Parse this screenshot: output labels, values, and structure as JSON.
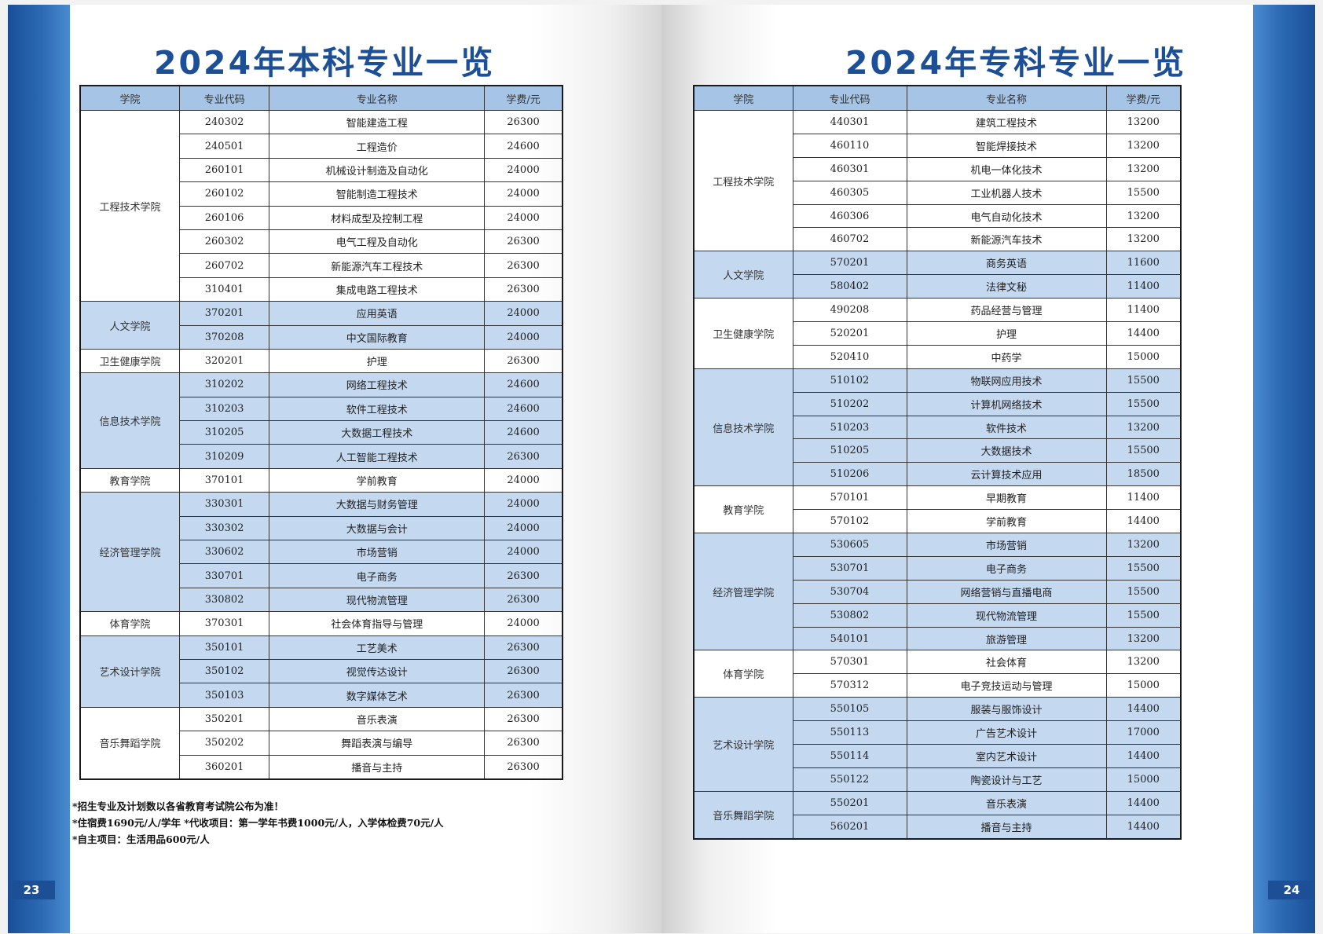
{
  "left_page": {
    "title": "2024年本科专业一览",
    "page_number": "23",
    "headers": [
      "学院",
      "专业代码",
      "专业名称",
      "学费/元"
    ],
    "groups": [
      {
        "college": "工程技术学院",
        "shaded": false,
        "rows": [
          {
            "code": "240302",
            "name": "智能建造工程",
            "fee": "26300"
          },
          {
            "code": "240501",
            "name": "工程造价",
            "fee": "24600"
          },
          {
            "code": "260101",
            "name": "机械设计制造及自动化",
            "fee": "24000"
          },
          {
            "code": "260102",
            "name": "智能制造工程技术",
            "fee": "24000"
          },
          {
            "code": "260106",
            "name": "材料成型及控制工程",
            "fee": "24000"
          },
          {
            "code": "260302",
            "name": "电气工程及自动化",
            "fee": "26300"
          },
          {
            "code": "260702",
            "name": "新能源汽车工程技术",
            "fee": "26300"
          },
          {
            "code": "310401",
            "name": "集成电路工程技术",
            "fee": "26300"
          }
        ]
      },
      {
        "college": "人文学院",
        "shaded": true,
        "rows": [
          {
            "code": "370201",
            "name": "应用英语",
            "fee": "24000"
          },
          {
            "code": "370208",
            "name": "中文国际教育",
            "fee": "24000"
          }
        ]
      },
      {
        "college": "卫生健康学院",
        "shaded": false,
        "rows": [
          {
            "code": "320201",
            "name": "护理",
            "fee": "26300"
          }
        ]
      },
      {
        "college": "信息技术学院",
        "shaded": true,
        "rows": [
          {
            "code": "310202",
            "name": "网络工程技术",
            "fee": "24600"
          },
          {
            "code": "310203",
            "name": "软件工程技术",
            "fee": "24600"
          },
          {
            "code": "310205",
            "name": "大数据工程技术",
            "fee": "24600"
          },
          {
            "code": "310209",
            "name": "人工智能工程技术",
            "fee": "26300"
          }
        ]
      },
      {
        "college": "教育学院",
        "shaded": false,
        "rows": [
          {
            "code": "370101",
            "name": "学前教育",
            "fee": "24000"
          }
        ]
      },
      {
        "college": "经济管理学院",
        "shaded": true,
        "rows": [
          {
            "code": "330301",
            "name": "大数据与财务管理",
            "fee": "24000"
          },
          {
            "code": "330302",
            "name": "大数据与会计",
            "fee": "24000"
          },
          {
            "code": "330602",
            "name": "市场营销",
            "fee": "24000"
          },
          {
            "code": "330701",
            "name": "电子商务",
            "fee": "26300"
          },
          {
            "code": "330802",
            "name": "现代物流管理",
            "fee": "26300"
          }
        ]
      },
      {
        "college": "体育学院",
        "shaded": false,
        "rows": [
          {
            "code": "370301",
            "name": "社会体育指导与管理",
            "fee": "24000"
          }
        ]
      },
      {
        "college": "艺术设计学院",
        "shaded": true,
        "rows": [
          {
            "code": "350101",
            "name": "工艺美术",
            "fee": "26300"
          },
          {
            "code": "350102",
            "name": "视觉传达设计",
            "fee": "26300"
          },
          {
            "code": "350103",
            "name": "数字媒体艺术",
            "fee": "26300"
          }
        ]
      },
      {
        "college": "音乐舞蹈学院",
        "shaded": false,
        "rows": [
          {
            "code": "350201",
            "name": "音乐表演",
            "fee": "26300"
          },
          {
            "code": "350202",
            "name": "舞蹈表演与编导",
            "fee": "26300"
          },
          {
            "code": "360201",
            "name": "播音与主持",
            "fee": "26300"
          }
        ]
      }
    ],
    "notes": [
      "*招生专业及计划数以各省教育考试院公布为准！",
      "*住宿费1690元/人/学年  *代收项目：第一学年书费1000元/人，入学体检费70元/人",
      "*自主项目：生活用品600元/人"
    ]
  },
  "right_page": {
    "title": "2024年专科专业一览",
    "page_number": "24",
    "headers": [
      "学院",
      "专业代码",
      "专业名称",
      "学费/元"
    ],
    "groups": [
      {
        "college": "工程技术学院",
        "shaded": false,
        "rows": [
          {
            "code": "440301",
            "name": "建筑工程技术",
            "fee": "13200"
          },
          {
            "code": "460110",
            "name": "智能焊接技术",
            "fee": "13200"
          },
          {
            "code": "460301",
            "name": "机电一体化技术",
            "fee": "13200"
          },
          {
            "code": "460305",
            "name": "工业机器人技术",
            "fee": "15500"
          },
          {
            "code": "460306",
            "name": "电气自动化技术",
            "fee": "13200"
          },
          {
            "code": "460702",
            "name": "新能源汽车技术",
            "fee": "13200"
          }
        ]
      },
      {
        "college": "人文学院",
        "shaded": true,
        "rows": [
          {
            "code": "570201",
            "name": "商务英语",
            "fee": "11600"
          },
          {
            "code": "580402",
            "name": "法律文秘",
            "fee": "11400"
          }
        ]
      },
      {
        "college": "卫生健康学院",
        "shaded": false,
        "rows": [
          {
            "code": "490208",
            "name": "药品经营与管理",
            "fee": "11400"
          },
          {
            "code": "520201",
            "name": "护理",
            "fee": "14400"
          },
          {
            "code": "520410",
            "name": "中药学",
            "fee": "15000"
          }
        ]
      },
      {
        "college": "信息技术学院",
        "shaded": true,
        "rows": [
          {
            "code": "510102",
            "name": "物联网应用技术",
            "fee": "15500"
          },
          {
            "code": "510202",
            "name": "计算机网络技术",
            "fee": "15500"
          },
          {
            "code": "510203",
            "name": "软件技术",
            "fee": "13200"
          },
          {
            "code": "510205",
            "name": "大数据技术",
            "fee": "15500"
          },
          {
            "code": "510206",
            "name": "云计算技术应用",
            "fee": "18500"
          }
        ]
      },
      {
        "college": "教育学院",
        "shaded": false,
        "rows": [
          {
            "code": "570101",
            "name": "早期教育",
            "fee": "11400"
          },
          {
            "code": "570102",
            "name": "学前教育",
            "fee": "14400"
          }
        ]
      },
      {
        "college": "经济管理学院",
        "shaded": true,
        "rows": [
          {
            "code": "530605",
            "name": "市场营销",
            "fee": "13200"
          },
          {
            "code": "530701",
            "name": "电子商务",
            "fee": "15500"
          },
          {
            "code": "530704",
            "name": "网络营销与直播电商",
            "fee": "15500"
          },
          {
            "code": "530802",
            "name": "现代物流管理",
            "fee": "15500"
          },
          {
            "code": "540101",
            "name": "旅游管理",
            "fee": "13200"
          }
        ]
      },
      {
        "college": "体育学院",
        "shaded": false,
        "rows": [
          {
            "code": "570301",
            "name": "社会体育",
            "fee": "13200"
          },
          {
            "code": "570312",
            "name": "电子竞技运动与管理",
            "fee": "15000"
          }
        ]
      },
      {
        "college": "艺术设计学院",
        "shaded": true,
        "rows": [
          {
            "code": "550105",
            "name": "服装与服饰设计",
            "fee": "14400"
          },
          {
            "code": "550113",
            "name": "广告艺术设计",
            "fee": "17000"
          },
          {
            "code": "550114",
            "name": "室内艺术设计",
            "fee": "14400"
          },
          {
            "code": "550122",
            "name": "陶瓷设计与工艺",
            "fee": "15000"
          }
        ]
      },
      {
        "college": "音乐舞蹈学院",
        "shaded": true,
        "rows": [
          {
            "code": "550201",
            "name": "音乐表演",
            "fee": "14400"
          },
          {
            "code": "560201",
            "name": "播音与主持",
            "fee": "14400"
          }
        ]
      }
    ]
  }
}
